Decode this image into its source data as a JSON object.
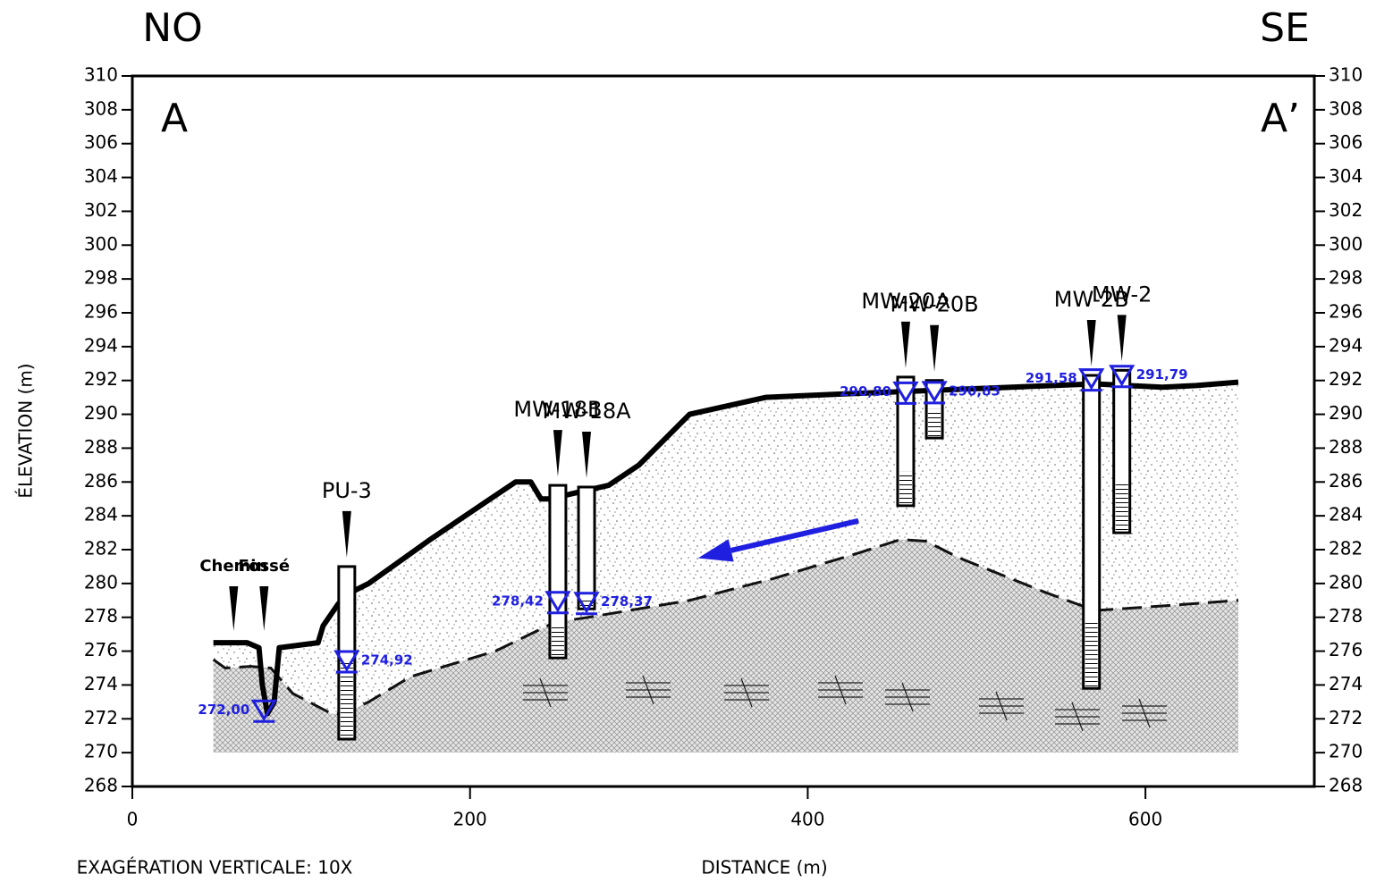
{
  "chart_data": {
    "type": "cross-section",
    "direction_left": "NO",
    "direction_right": "SE",
    "section_start": "A",
    "section_end": "A’",
    "ylabel": "ÉLEVATION (m)",
    "xlabel": "DISTANCE (m)",
    "note": "EXAGÉRATION VERTICALE: 10X",
    "xlim": [
      0,
      700
    ],
    "ylim": [
      268,
      310
    ],
    "xticks": [
      0,
      200,
      400,
      600
    ],
    "yticks": [
      268,
      270,
      272,
      274,
      276,
      278,
      280,
      282,
      284,
      286,
      288,
      290,
      292,
      294,
      296,
      298,
      300,
      302,
      304,
      306,
      308,
      310
    ],
    "ground": {
      "x": [
        48,
        68,
        75,
        77,
        80,
        84,
        87,
        110,
        113,
        122,
        130,
        140,
        175,
        212,
        227,
        236,
        242,
        248,
        260,
        282,
        300,
        330,
        375,
        420,
        470,
        570,
        610,
        630,
        655
      ],
      "y": [
        276.5,
        276.5,
        276.2,
        274,
        272.3,
        273,
        276.2,
        276.5,
        277.5,
        278.8,
        279.5,
        280,
        282.5,
        285,
        286,
        286,
        285,
        285,
        285.3,
        285.8,
        287,
        290,
        291,
        291.2,
        291.4,
        291.8,
        291.6,
        291.7,
        291.9
      ]
    },
    "contact": {
      "x": [
        48,
        55,
        70,
        82,
        95,
        118,
        125,
        140,
        165,
        215,
        250,
        270,
        330,
        380,
        430,
        455,
        470,
        490,
        540,
        570,
        600,
        655
      ],
      "y": [
        275.5,
        275,
        275.1,
        275,
        273.5,
        272.3,
        272.3,
        273,
        274.5,
        276,
        277.7,
        278,
        279,
        280.3,
        281.8,
        282.6,
        282.5,
        281.5,
        279.5,
        278.4,
        278.6,
        279
      ]
    },
    "base": 270,
    "flow_arrow": {
      "x": [
        430,
        335
      ],
      "y": [
        283.7,
        281.5
      ],
      "color": "#1f1fe0"
    },
    "water_color": "#1f1fe0",
    "annotations": [
      {
        "text": "Chemin",
        "x": 60
      },
      {
        "text": "Fossé",
        "x": 78,
        "water_level": 272.0,
        "water_label": "272,00"
      }
    ],
    "wells": [
      {
        "name": "PU-3",
        "x": 127,
        "top": 281,
        "bottom": 270.8,
        "screen_top": 275.5,
        "water_level": 274.92,
        "water_label": "274,92"
      },
      {
        "name": "MW-18B",
        "x": 252,
        "top": 285.8,
        "bottom": 275.6,
        "screen_top": 277.6,
        "water_level": 278.42,
        "water_label": "278,42"
      },
      {
        "name": "MW-18A",
        "x": 269,
        "top": 285.7,
        "bottom": 278.5,
        "screen_top": 279,
        "water_level": 278.37,
        "water_label": "278,37"
      },
      {
        "name": "MW-20A",
        "x": 458,
        "top": 292.2,
        "bottom": 284.6,
        "screen_top": 286.6,
        "water_level": 290.8,
        "water_label": "290,80"
      },
      {
        "name": "MW-20B",
        "x": 475,
        "top": 292,
        "bottom": 288.6,
        "screen_top": 290.3,
        "water_level": 290.83,
        "water_label": "290,83"
      },
      {
        "name": "MW-2B",
        "x": 568,
        "top": 292.3,
        "bottom": 273.8,
        "screen_top": 277.8,
        "water_level": 291.58,
        "water_label": "291,58"
      },
      {
        "name": "MW-2",
        "x": 586,
        "top": 292.6,
        "bottom": 283,
        "screen_top": 286,
        "water_level": 291.79,
        "water_label": "291,79"
      }
    ]
  }
}
